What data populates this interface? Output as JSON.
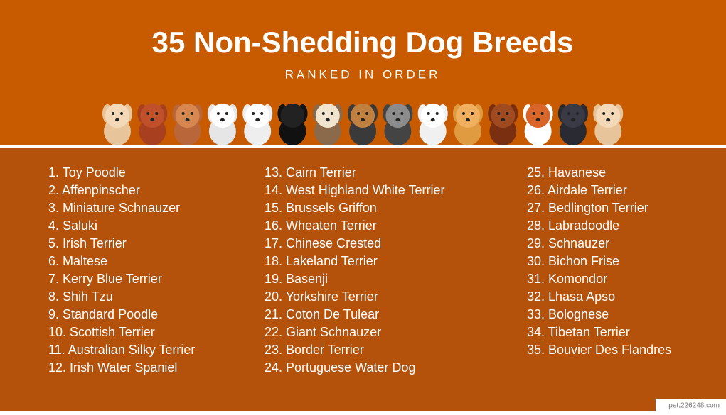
{
  "header": {
    "title": "35 Non-Shedding Dog Breeds",
    "subtitle": "RANKED IN ORDER"
  },
  "columns": [
    [
      "1. Toy Poodle",
      "2. Affenpinscher",
      "3. Miniature Schnauzer",
      "4. Saluki",
      "5. Irish Terrier",
      "6. Maltese",
      "7. Kerry Blue Terrier",
      "8. Shih Tzu",
      "9. Standard Poodle",
      "10. Scottish Terrier",
      "11. Australian Silky Terrier",
      "12. Irish Water Spaniel"
    ],
    [
      "13. Cairn Terrier",
      "14. West Highland White Terrier",
      "15. Brussels Griffon",
      "16. Wheaten Terrier",
      "17. Chinese Crested",
      "18. Lakeland Terrier",
      "19. Basenji",
      "20. Yorkshire Terrier",
      "21. Coton De Tulear",
      "22. Giant Schnauzer",
      "23. Border Terrier",
      "24. Portuguese Water Dog"
    ],
    [
      "25. Havanese",
      "26. Airdale Terrier",
      "27. Bedlington Terrier",
      "28. Labradoodle",
      "29. Schnauzer",
      "30. Bichon Frise",
      "31. Komondor",
      "32. Lhasa Apso",
      "33. Bolognese",
      "34. Tibetan Terrier",
      "35. Bouvier Des Flandres"
    ]
  ],
  "watermark": "pet.226248.com"
}
